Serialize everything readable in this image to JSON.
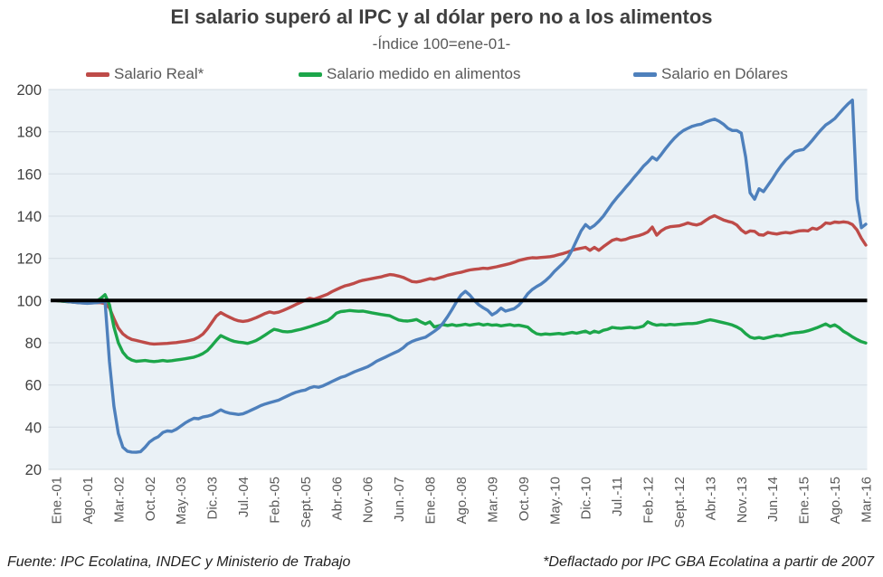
{
  "title": "El salario superó al IPC y al dólar pero no a los alimentos",
  "subtitle": "-Índice 100=ene-01-",
  "legend": [
    {
      "label": "Salario Real*",
      "color": "#BE4B48"
    },
    {
      "label": "Salario medido en alimentos",
      "color": "#1CA64A"
    },
    {
      "label": "Salario en Dólares",
      "color": "#4E80BC"
    }
  ],
  "footer": {
    "source": "Fuente: IPC Ecolatina, INDEC y Ministerio de Trabajo",
    "note": "*Deflactado por IPC GBA Ecolatina a partir de 2007"
  },
  "chart_data": {
    "type": "line",
    "x_unit": "month",
    "n_points": 183,
    "x_start": "Ene-01",
    "x_end": "Mar-16",
    "x_tick_interval_months": 7,
    "x_tick_labels": [
      "Ene.-01",
      "Ago.-01",
      "Mar.-02",
      "Oct.-02",
      "May.-03",
      "Dic.-03",
      "Jul.-04",
      "Feb.-05",
      "Sept.-05",
      "Abr.-06",
      "Nov.-06",
      "Jun.-07",
      "Ene.-08",
      "Ago.-08",
      "Mar.-09",
      "Oct.-09",
      "May.-10",
      "Dic.-10",
      "Jul.-11",
      "Feb.-12",
      "Sept.-12",
      "Abr.-13",
      "Nov.-13",
      "Jun.-14",
      "Ene.-15",
      "Ago.-15",
      "Mar.-16"
    ],
    "y_ticks": [
      20,
      40,
      60,
      80,
      100,
      120,
      140,
      160,
      180,
      200
    ],
    "ylim": [
      20,
      200
    ],
    "grid": true,
    "grid_color": "#D3DBE2",
    "plot_bg": "#EAF1F6",
    "reference_line": {
      "value": 100,
      "color": "#000000"
    },
    "legend_position": "top",
    "series": [
      {
        "name": "Salario Real*",
        "color": "#BE4B48",
        "values": [
          100,
          99.8,
          99.6,
          99.4,
          99.2,
          99,
          98.9,
          98.8,
          98.9,
          99,
          99,
          98.6,
          96.5,
          91.5,
          87,
          84.2,
          82.6,
          81.6,
          81.1,
          80.6,
          80.1,
          79.6,
          79.4,
          79.5,
          79.6,
          79.7,
          79.9,
          80.1,
          80.4,
          80.7,
          81.1,
          81.6,
          82.6,
          84.1,
          86.6,
          89.6,
          92.6,
          94.3,
          93.1,
          92.1,
          91.1,
          90.4,
          90.1,
          90.4,
          91.1,
          91.9,
          92.9,
          93.9,
          94.6,
          94.1,
          94.5,
          95.3,
          96.2,
          97.2,
          98.2,
          99.2,
          100.2,
          101.1,
          100.6,
          101.4,
          102.2,
          103,
          104.2,
          105.2,
          106.2,
          107,
          107.5,
          108.2,
          109,
          109.6,
          110,
          110.4,
          110.8,
          111.2,
          111.8,
          112.3,
          112.1,
          111.6,
          111,
          110,
          109,
          108.8,
          109.2,
          109.8,
          110.4,
          110.1,
          110.7,
          111.3,
          112,
          112.5,
          113,
          113.4,
          114,
          114.5,
          114.8,
          115,
          115.3,
          115.2,
          115.6,
          116,
          116.5,
          117,
          117.5,
          118.2,
          119,
          119.5,
          120,
          120.3,
          120.2,
          120.4,
          120.6,
          120.8,
          121.2,
          121.8,
          122.3,
          123,
          123.8,
          124.4,
          124.8,
          125.2,
          123.8,
          125.2,
          123.8,
          125.5,
          127,
          128.5,
          129.2,
          128.6,
          129,
          129.8,
          130.3,
          130.8,
          131.5,
          132.5,
          134.8,
          131,
          133,
          134.3,
          135,
          135.2,
          135.4,
          136,
          136.8,
          136.2,
          135.8,
          136.5,
          138,
          139.3,
          140.2,
          139.2,
          138.2,
          137.5,
          137,
          135.8,
          133.5,
          132,
          133,
          132.8,
          131.2,
          131,
          132.3,
          131.8,
          131.5,
          132,
          132.3,
          132,
          132.5,
          133,
          133.2,
          133,
          134.3,
          133.8,
          135,
          136.8,
          136.5,
          137.2,
          137,
          137.3,
          137,
          136,
          133.5,
          129.5,
          126.3
        ]
      },
      {
        "name": "Salario medido en alimentos",
        "color": "#1CA64A",
        "values": [
          100,
          99.8,
          99.6,
          99.4,
          99.3,
          99.1,
          99,
          98.9,
          99.1,
          99.6,
          101,
          102.8,
          98,
          87.5,
          80,
          75.5,
          73,
          71.8,
          71.2,
          71.4,
          71.6,
          71.3,
          71.1,
          71.3,
          71.6,
          71.3,
          71.5,
          71.8,
          72.1,
          72.4,
          72.8,
          73.2,
          73.9,
          74.9,
          76.3,
          78.6,
          81.1,
          83.4,
          82.4,
          81.4,
          80.7,
          80.3,
          80.1,
          79.7,
          80.3,
          81.1,
          82.3,
          83.7,
          85.1,
          86.4,
          85.9,
          85.3,
          85.2,
          85.4,
          85.9,
          86.4,
          87,
          87.6,
          88.3,
          89,
          89.8,
          90.5,
          92,
          94,
          94.8,
          95,
          95.3,
          95.1,
          94.9,
          95,
          94.6,
          94.2,
          93.8,
          93.4,
          93.1,
          92.8,
          91.8,
          90.8,
          90.4,
          90.3,
          90.6,
          91,
          89.9,
          88.9,
          89.9,
          87.5,
          88,
          88.6,
          88.2,
          88.6,
          88.1,
          88.4,
          88.8,
          88.3,
          88.7,
          89,
          88.4,
          88.8,
          88.3,
          88.5,
          88,
          88.3,
          88.6,
          88.1,
          88.3,
          87.9,
          87.4,
          85.6,
          84.3,
          83.9,
          84.2,
          84,
          84.2,
          84.4,
          84.1,
          84.5,
          84.9,
          84.5,
          85,
          85.5,
          84.5,
          85.5,
          84.9,
          85.9,
          86.4,
          87.3,
          87,
          86.8,
          87.1,
          87.3,
          87,
          87.3,
          87.9,
          89.9,
          88.9,
          88.3,
          88.6,
          88.4,
          88.7,
          88.5,
          88.7,
          88.9,
          89.1,
          89.1,
          89.3,
          89.8,
          90.4,
          90.9,
          90.5,
          90,
          89.5,
          89,
          88.4,
          87.5,
          86.3,
          84.3,
          82.7,
          82.1,
          82.5,
          82,
          82.5,
          83,
          83.5,
          83.3,
          83.9,
          84.4,
          84.7,
          84.9,
          85.2,
          85.7,
          86.4,
          87.1,
          88,
          88.9,
          87.7,
          88.5,
          87.2,
          85.4,
          84.2,
          82.8,
          81.6,
          80.5,
          79.9
        ]
      },
      {
        "name": "Salario en Dólares",
        "color": "#4E80BC",
        "values": [
          100,
          100,
          99.7,
          99.4,
          99.2,
          99,
          98.8,
          98.7,
          98.8,
          99,
          99.3,
          99.6,
          71,
          50,
          37,
          30.5,
          28.6,
          28.2,
          28.1,
          28.4,
          30.5,
          33,
          34.5,
          35.5,
          37.5,
          38.2,
          38,
          39,
          40.5,
          42,
          43.2,
          44.2,
          44,
          44.8,
          45.2,
          45.8,
          47,
          48.2,
          47.2,
          46.6,
          46.3,
          46,
          46.3,
          47.2,
          48.2,
          49.2,
          50.2,
          51,
          51.6,
          52.2,
          52.8,
          53.8,
          54.8,
          55.8,
          56.6,
          57.2,
          57.6,
          58.6,
          59.2,
          58.9,
          59.6,
          60.6,
          61.6,
          62.6,
          63.6,
          64.2,
          65.2,
          66.2,
          67,
          67.8,
          68.6,
          69.8,
          71.2,
          72.2,
          73.2,
          74.2,
          75.2,
          76.2,
          77.6,
          79.5,
          80.6,
          81.4,
          82,
          82.6,
          84,
          85.4,
          87,
          89.4,
          92.4,
          95.8,
          99.4,
          102.6,
          104.4,
          102.6,
          100,
          98,
          96.6,
          95.4,
          93.2,
          94.4,
          96.4,
          95,
          95.6,
          96.2,
          97.8,
          100.2,
          103.2,
          105.2,
          106.6,
          107.8,
          109.4,
          111.4,
          113.8,
          115.8,
          117.8,
          120.2,
          124,
          128.6,
          133,
          136,
          134.2,
          135.6,
          137.6,
          140,
          143,
          146,
          148.6,
          151,
          153.6,
          156,
          158.6,
          161,
          163.6,
          165.6,
          168,
          166.6,
          169.2,
          172,
          174.6,
          177,
          179,
          180.6,
          181.6,
          182.6,
          183.2,
          183.6,
          184.6,
          185.4,
          186,
          185,
          183.6,
          181.6,
          180.6,
          180.6,
          179.4,
          168,
          151,
          148,
          153,
          151.6,
          154.6,
          157.6,
          161,
          164,
          166.6,
          168.6,
          170.6,
          171.2,
          171.6,
          173.6,
          176,
          178.6,
          181,
          183.2,
          184.6,
          186.2,
          188.6,
          191,
          193.2,
          195,
          148,
          134.5,
          136.2
        ]
      }
    ]
  }
}
